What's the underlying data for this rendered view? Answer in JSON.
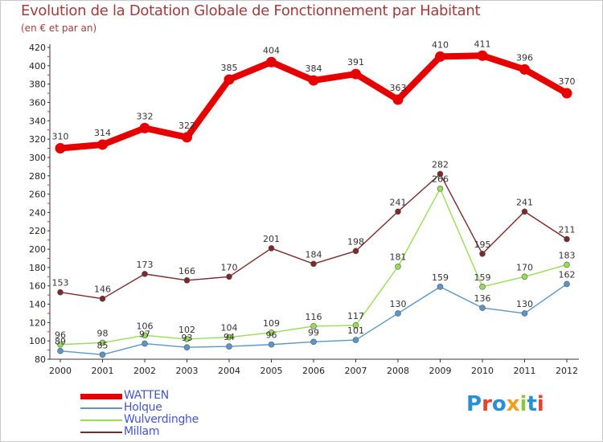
{
  "title": "Evolution de la Dotation Globale de Fonctionnement par Habitant",
  "subtitle": "(en € et par an)",
  "logo_text": "Proxiti",
  "chart_data": {
    "type": "line",
    "title": "Evolution de la Dotation Globale de Fonctionnement par Habitant",
    "ylabel": "(en € et par an)",
    "xlabel": "",
    "ylim": [
      80,
      420
    ],
    "yticks": [
      80,
      100,
      120,
      140,
      160,
      180,
      200,
      220,
      240,
      260,
      280,
      300,
      320,
      340,
      360,
      380,
      400,
      420
    ],
    "grid": false,
    "categories": [
      "2000",
      "2001",
      "2002",
      "2003",
      "2004",
      "2005",
      "2006",
      "2007",
      "2008",
      "2009",
      "2010",
      "2011",
      "2012"
    ],
    "series": [
      {
        "name": "WATTEN",
        "color": "#e60000",
        "values": [
          310,
          314,
          332,
          322,
          385,
          404,
          384,
          391,
          363,
          410,
          411,
          396,
          370
        ]
      },
      {
        "name": "Holque",
        "color": "#5b96c8",
        "values": [
          89,
          85,
          97,
          93,
          94,
          96,
          99,
          101,
          130,
          159,
          136,
          130,
          162
        ]
      },
      {
        "name": "Wulverdinghe",
        "color": "#99dd55",
        "values": [
          96,
          98,
          106,
          102,
          104,
          109,
          116,
          117,
          181,
          266,
          159,
          170,
          183
        ]
      },
      {
        "name": "Millam",
        "color": "#7a2a2a",
        "values": [
          153,
          146,
          173,
          166,
          170,
          201,
          184,
          198,
          241,
          282,
          195,
          241,
          211
        ]
      }
    ]
  }
}
